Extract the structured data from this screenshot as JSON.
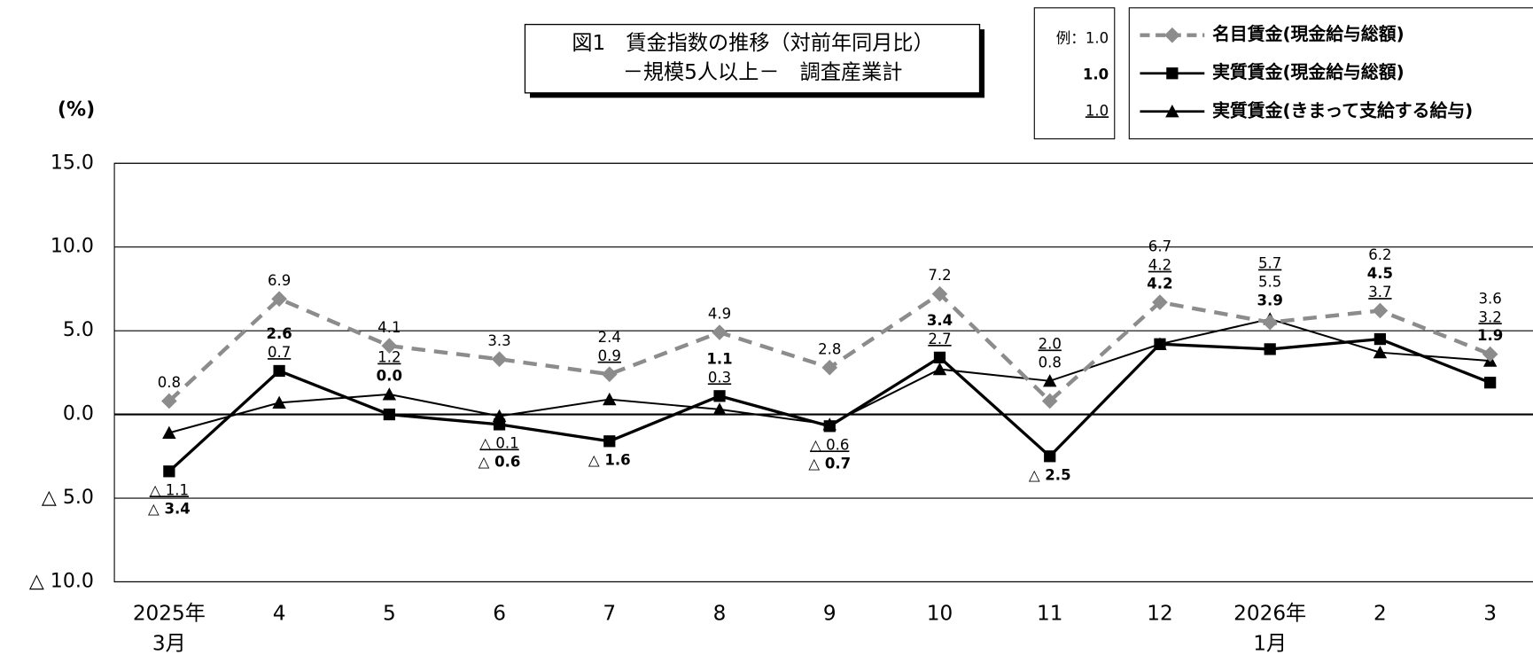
{
  "chart_data": {
    "type": "line",
    "title": "図1　賃金指数の推移（対前年同月比）",
    "subtitle": "－規模5人以上－　調査産業計",
    "y_axis_label": "(%)",
    "categories": [
      [
        "2025年",
        "3月"
      ],
      [
        "4"
      ],
      [
        "5"
      ],
      [
        "6"
      ],
      [
        "7"
      ],
      [
        "8"
      ],
      [
        "9"
      ],
      [
        "10"
      ],
      [
        "11"
      ],
      [
        "12"
      ],
      [
        "2026年",
        "1月"
      ],
      [
        "2"
      ],
      [
        "3"
      ]
    ],
    "ylim": [
      -10,
      15
    ],
    "yticks": [
      {
        "value": -10,
        "label": "△ 10.0"
      },
      {
        "value": -5,
        "label": "△ 5.0"
      },
      {
        "value": 0,
        "label": "0.0"
      },
      {
        "value": 5,
        "label": "5.0"
      },
      {
        "value": 10,
        "label": "10.0"
      },
      {
        "value": 15,
        "label": "15.0"
      }
    ],
    "grid": true,
    "legend_examples": [
      "例：1.0",
      "1.0",
      "1.0"
    ],
    "series": [
      {
        "name": "名目賃金(現金給与総額)",
        "color": "#8c8c8c",
        "marker": "diamond",
        "dash": true,
        "label_style": "plain",
        "values": [
          0.8,
          6.9,
          4.1,
          3.3,
          2.4,
          4.9,
          2.8,
          7.2,
          0.8,
          6.7,
          5.5,
          6.2,
          3.6
        ],
        "value_labels": [
          "0.8",
          "6.9",
          "4.1",
          "3.3",
          "2.4",
          "4.9",
          "2.8",
          "7.2",
          "0.8",
          "6.7",
          "5.5",
          "6.2",
          "3.6"
        ]
      },
      {
        "name": "実質賃金(現金給与総額)",
        "color": "#000000",
        "marker": "square",
        "dash": false,
        "label_style": "bold",
        "values": [
          -3.4,
          2.6,
          0.0,
          -0.6,
          -1.6,
          1.1,
          -0.7,
          3.4,
          -2.5,
          4.2,
          3.9,
          4.5,
          1.9
        ],
        "value_labels": [
          "△ 3.4",
          "2.6",
          "0.0",
          "△ 0.6",
          "△ 1.6",
          "1.1",
          "△ 0.7",
          "3.4",
          "△ 2.5",
          "4.2",
          "3.9",
          "4.5",
          "1.9"
        ]
      },
      {
        "name": "実質賃金(きまって支給する給与)",
        "color": "#000000",
        "marker": "triangle",
        "dash": false,
        "label_style": "underline",
        "values": [
          -1.1,
          0.7,
          1.2,
          -0.1,
          0.9,
          0.3,
          -0.6,
          2.7,
          2.0,
          4.2,
          5.7,
          3.7,
          3.2
        ],
        "value_labels": [
          "△ 1.1",
          "0.7",
          "1.2",
          "△ 0.1",
          "0.9",
          "0.3",
          "△ 0.6",
          "2.7",
          "2.0",
          "4.2",
          "5.7",
          "3.7",
          "3.2"
        ]
      }
    ]
  }
}
